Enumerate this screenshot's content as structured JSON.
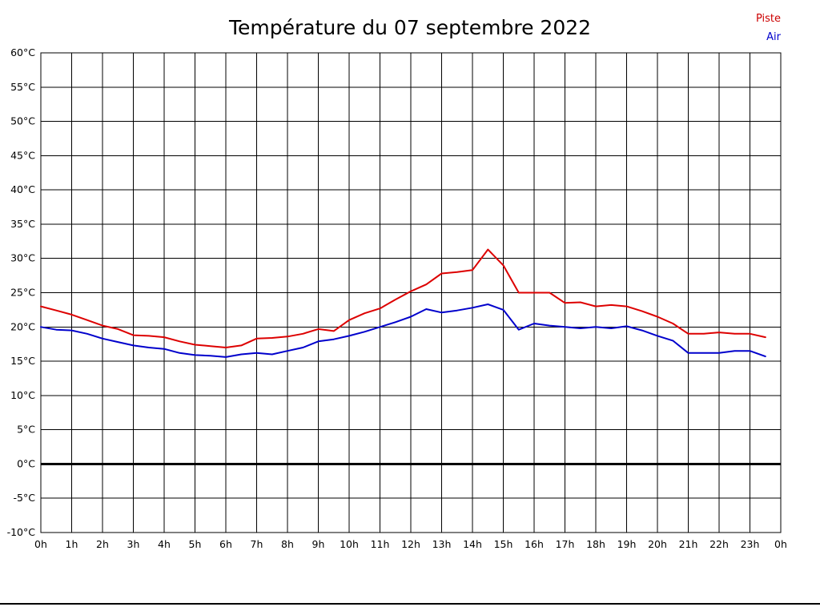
{
  "title": "Température du 07 septembre 2022",
  "legend": [
    {
      "label": "Piste",
      "color": "#cc0000"
    },
    {
      "label": "Air",
      "color": "#0000cc"
    }
  ],
  "chart_data": {
    "type": "line",
    "title": "Température du 07 septembre 2022",
    "xlabel": "",
    "ylabel": "",
    "grid": true,
    "legend_position": "top-right",
    "xlim": [
      0,
      24
    ],
    "ylim": [
      -10,
      60
    ],
    "x_ticks": [
      0,
      1,
      2,
      3,
      4,
      5,
      6,
      7,
      8,
      9,
      10,
      11,
      12,
      13,
      14,
      15,
      16,
      17,
      18,
      19,
      20,
      21,
      22,
      23,
      24
    ],
    "x_tick_labels": [
      "0h",
      "1h",
      "2h",
      "3h",
      "4h",
      "5h",
      "6h",
      "7h",
      "8h",
      "9h",
      "10h",
      "11h",
      "12h",
      "13h",
      "14h",
      "15h",
      "16h",
      "17h",
      "18h",
      "19h",
      "20h",
      "21h",
      "22h",
      "23h",
      "0h"
    ],
    "y_ticks": [
      60,
      55,
      50,
      45,
      40,
      35,
      30,
      25,
      20,
      15,
      10,
      5,
      0,
      -5,
      -10
    ],
    "y_tick_labels": [
      "60°C",
      "55°C",
      "50°C",
      "45°C",
      "40°C",
      "35°C",
      "30°C",
      "25°C",
      "20°C",
      "15°C",
      "10°C",
      "5°C",
      "0°C",
      "-5°C",
      "-10°C"
    ],
    "zero_line_value": 0,
    "x": [
      0,
      0.5,
      1,
      1.5,
      2,
      2.5,
      3,
      3.5,
      4,
      4.5,
      5,
      5.5,
      6,
      6.5,
      7,
      7.5,
      8,
      8.5,
      9,
      9.5,
      10,
      10.5,
      11,
      11.5,
      12,
      12.5,
      13,
      13.5,
      14,
      14.5,
      15,
      15.5,
      16,
      16.5,
      17,
      17.5,
      18,
      18.5,
      19,
      19.5,
      20,
      20.5,
      21,
      21.5,
      22,
      22.5,
      23,
      23.5
    ],
    "series": [
      {
        "name": "Piste",
        "color": "#dd0000",
        "values": [
          23,
          22.4,
          21.8,
          21,
          20.2,
          19.7,
          18.8,
          18.7,
          18.5,
          17.9,
          17.4,
          17.2,
          17,
          17.3,
          18.3,
          18.4,
          18.6,
          19,
          19.7,
          19.4,
          21,
          22,
          22.7,
          24,
          25.2,
          26.2,
          27.8,
          28,
          28.3,
          31.3,
          29,
          25,
          25,
          25,
          23.5,
          23.6,
          23,
          23.2,
          23,
          22.3,
          21.5,
          20.5,
          19,
          19,
          19.2,
          19,
          19,
          18.5
        ]
      },
      {
        "name": "Air",
        "color": "#0000cc",
        "values": [
          20,
          19.6,
          19.5,
          19,
          18.3,
          17.8,
          17.3,
          17,
          16.8,
          16.2,
          15.9,
          15.8,
          15.6,
          16,
          16.2,
          16,
          16.5,
          17,
          17.9,
          18.2,
          18.7,
          19.3,
          20,
          20.7,
          21.5,
          22.6,
          22.1,
          22.4,
          22.8,
          23.3,
          22.5,
          19.6,
          20.5,
          20.2,
          20,
          19.8,
          20,
          19.8,
          20.1,
          19.5,
          18.7,
          18,
          16.2,
          16.2,
          16.2,
          16.5,
          16.5,
          15.7
        ]
      }
    ]
  }
}
